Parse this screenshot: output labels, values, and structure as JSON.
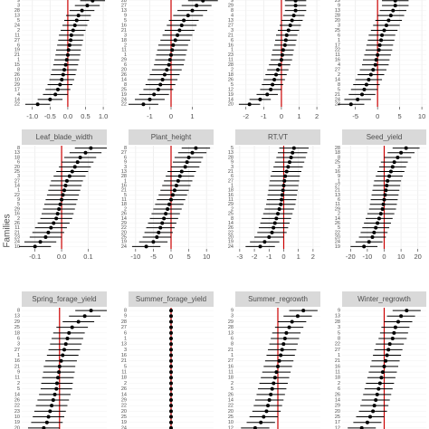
{
  "y_label": "Families",
  "chart_data": [
    {
      "type": "forest",
      "color": "#000000",
      "ref_color": "#cc0000",
      "reference_line": 0,
      "xlim": [
        -1.3,
        1.1
      ],
      "xticks": [
        {
          "value": -1,
          "label": "-1.0"
        },
        -0.5,
        {
          "value": 0,
          "label": "0.0"
        },
        0.5,
        {
          "value": 1,
          "label": "1.0"
        }
      ],
      "categories": [
        "9",
        "3",
        "28",
        "13",
        "5",
        "24",
        "2",
        "11",
        "27",
        "6",
        "19",
        "21",
        "1",
        "15",
        "8",
        "26",
        "10",
        "29",
        "17",
        "4",
        "14",
        "22"
      ],
      "values": [
        0.7,
        0.55,
        0.4,
        0.3,
        0.25,
        0.2,
        0.15,
        0.1,
        0.08,
        0.05,
        0.02,
        0,
        -0.03,
        -0.06,
        -0.1,
        -0.13,
        -0.17,
        -0.22,
        -0.28,
        -0.35,
        -0.5,
        -0.85
      ],
      "errors": [
        0.35,
        0.35,
        0.35,
        0.35,
        0.35,
        0.35,
        0.35,
        0.35,
        0.35,
        0.35,
        0.35,
        0.35,
        0.35,
        0.35,
        0.35,
        0.35,
        0.35,
        0.35,
        0.35,
        0.35,
        0.35,
        0.35
      ]
    },
    {
      "type": "forest",
      "color": "#000000",
      "ref_color": "#cc0000",
      "reference_line": 0,
      "xlim": [
        -2,
        2
      ],
      "xticks": [
        -1,
        0,
        1
      ],
      "categories": [
        "28",
        "27",
        "13",
        "9",
        "5",
        "16",
        "21",
        "3",
        "18",
        "2",
        "11",
        "1",
        "29",
        "6",
        "20",
        "26",
        "14",
        "8",
        "25",
        "19",
        "24",
        "22"
      ],
      "values": [
        1.5,
        1.2,
        1.0,
        0.8,
        0.6,
        0.5,
        0.4,
        0.3,
        0.2,
        0.1,
        0.05,
        0,
        -0.05,
        -0.1,
        -0.2,
        -0.3,
        -0.4,
        -0.5,
        -0.6,
        -0.8,
        -1.0,
        -1.3
      ],
      "errors": [
        0.7,
        0.7,
        0.7,
        0.7,
        0.7,
        0.7,
        0.7,
        0.7,
        0.7,
        0.7,
        0.7,
        0.7,
        0.7,
        0.7,
        0.7,
        0.7,
        0.7,
        0.7,
        0.7,
        0.7,
        0.7,
        0.7
      ]
    },
    {
      "type": "forest",
      "color": "#000000",
      "ref_color": "#cc0000",
      "reference_line": 0,
      "xlim": [
        -2.6,
        2.2
      ],
      "xticks": [
        -2,
        -1,
        0,
        1,
        2
      ],
      "categories": [
        "9",
        "29",
        "8",
        "4",
        "13",
        "27",
        "3",
        "21",
        "6",
        "16",
        "1",
        "23",
        "11",
        "28",
        "2",
        "18",
        "26",
        "5",
        "12",
        "19",
        "14",
        "20"
      ],
      "values": [
        0.8,
        0.8,
        0.8,
        0.7,
        0.6,
        0.5,
        0.4,
        0.3,
        0.25,
        0.2,
        0.1,
        0.05,
        0,
        -0.1,
        -0.2,
        -0.3,
        -0.4,
        -0.5,
        -0.6,
        -0.8,
        -1.2,
        -1.8
      ],
      "errors": [
        0.6,
        0.6,
        0.6,
        0.6,
        0.6,
        0.6,
        0.6,
        0.6,
        0.6,
        0.6,
        0.6,
        0.6,
        0.6,
        0.6,
        0.6,
        0.6,
        0.6,
        0.6,
        0.6,
        0.6,
        0.6,
        0.6
      ]
    },
    {
      "type": "forest",
      "color": "#000000",
      "ref_color": "#cc0000",
      "reference_line": 0,
      "xlim": [
        -8,
        11
      ],
      "xticks": [
        -5,
        0,
        5,
        10
      ],
      "categories": [
        "29",
        "9",
        "13",
        "28",
        "20",
        "3",
        "25",
        "6",
        "1",
        "17",
        "22",
        "11",
        "16",
        "4",
        "27",
        "2",
        "14",
        "8",
        "5",
        "21",
        "24",
        "23"
      ],
      "values": [
        4,
        4,
        3.5,
        3,
        2.5,
        2,
        1.5,
        1,
        0.8,
        0.5,
        0.3,
        0,
        -0.3,
        -0.5,
        -1,
        -1.5,
        -2,
        -2.5,
        -3,
        -3.5,
        -4.5,
        -6
      ],
      "errors": [
        3,
        3,
        3,
        3,
        3,
        3,
        3,
        3,
        3,
        3,
        3,
        3,
        3,
        3,
        3,
        3,
        3,
        3,
        3,
        3,
        3,
        3
      ]
    },
    {
      "type": "forest",
      "title": "Leaf_blade_width",
      "color": "#000000",
      "ref_color": "#cc0000",
      "reference_line": 0,
      "xlim": [
        -0.15,
        0.17
      ],
      "xticks": [
        -0.1,
        {
          "value": 0,
          "label": "0.0"
        },
        0.1
      ],
      "categories": [
        "8",
        "13",
        "18",
        "6",
        "20",
        "25",
        "3",
        "27",
        "14",
        "1",
        "22",
        "9",
        "5",
        "29",
        "16",
        "2",
        "26",
        "11",
        "21",
        "23",
        "24",
        "10"
      ],
      "values": [
        0.11,
        0.09,
        0.07,
        0.06,
        0.05,
        0.04,
        0.03,
        0.02,
        0.015,
        0.01,
        0.005,
        0,
        -0.005,
        -0.01,
        -0.015,
        -0.02,
        -0.03,
        -0.04,
        -0.05,
        -0.06,
        -0.08,
        -0.1
      ],
      "errors": [
        0.06,
        0.06,
        0.06,
        0.06,
        0.06,
        0.06,
        0.06,
        0.06,
        0.06,
        0.06,
        0.06,
        0.06,
        0.06,
        0.06,
        0.06,
        0.06,
        0.06,
        0.06,
        0.06,
        0.06,
        0.06,
        0.06
      ]
    },
    {
      "type": "forest",
      "title": "Plant_height",
      "color": "#000000",
      "ref_color": "#cc0000",
      "reference_line": 0,
      "xlim": [
        -12,
        12
      ],
      "xticks": [
        -10,
        -5,
        0,
        5,
        10
      ],
      "categories": [
        "8",
        "27",
        "6",
        "9",
        "3",
        "13",
        "28",
        "1",
        "16",
        "21",
        "5",
        "11",
        "18",
        "2",
        "26",
        "14",
        "29",
        "22",
        "20",
        "25",
        "19",
        "24"
      ],
      "values": [
        7,
        6,
        5,
        4.5,
        4,
        3,
        2.5,
        2,
        1.5,
        1,
        0.5,
        0,
        -0.5,
        -1,
        -1.5,
        -2,
        -2.5,
        -3,
        -3.5,
        -4,
        -5,
        -7
      ],
      "errors": [
        4,
        4,
        4,
        4,
        4,
        4,
        4,
        4,
        4,
        4,
        4,
        4,
        4,
        4,
        4,
        4,
        4,
        4,
        4,
        4,
        4,
        4
      ]
    },
    {
      "type": "forest",
      "title": "RT.VT",
      "color": "#000000",
      "ref_color": "#cc0000",
      "reference_line": 0,
      "xlim": [
        -3.3,
        2.5
      ],
      "xticks": [
        -3,
        -2,
        -1,
        0,
        1,
        2
      ],
      "categories": [
        "5",
        "13",
        "28",
        "9",
        "3",
        "21",
        "6",
        "27",
        "1",
        "18",
        "16",
        "11",
        "29",
        "2",
        "25",
        "8",
        "14",
        "26",
        "22",
        "20",
        "19",
        "24"
      ],
      "values": [
        0.7,
        0.6,
        0.5,
        0.4,
        0.3,
        0.2,
        0.1,
        0.05,
        0,
        -0.05,
        -0.1,
        -0.15,
        -0.2,
        -0.3,
        -0.4,
        -0.5,
        -0.6,
        -0.7,
        -0.8,
        -1,
        -1.3,
        -1.6
      ],
      "errors": [
        1,
        1,
        1,
        1,
        1,
        1,
        1,
        1,
        1,
        1,
        1,
        1,
        1,
        1,
        1,
        1,
        1,
        1,
        1,
        1,
        1,
        1
      ]
    },
    {
      "type": "forest",
      "title": "Seed_yield",
      "color": "#000000",
      "ref_color": "#cc0000",
      "reference_line": 0,
      "xlim": [
        -25,
        25
      ],
      "xticks": [
        -20,
        -10,
        0,
        10,
        20
      ],
      "categories": [
        "28",
        "18",
        "8",
        "25",
        "3",
        "16",
        "9",
        "1",
        "27",
        "21",
        "13",
        "6",
        "11",
        "29",
        "2",
        "14",
        "26",
        "5",
        "22",
        "20",
        "24",
        "19"
      ],
      "values": [
        13,
        10,
        8,
        6,
        5,
        4,
        3,
        2,
        1.5,
        1,
        0.5,
        0,
        -0.5,
        -1,
        -2,
        -3,
        -4,
        -5,
        -6,
        -7,
        -9,
        -12
      ],
      "errors": [
        8,
        8,
        8,
        8,
        8,
        8,
        8,
        8,
        8,
        8,
        8,
        8,
        8,
        8,
        8,
        8,
        8,
        8,
        8,
        8,
        8,
        8
      ]
    },
    {
      "type": "forest",
      "title": "Spring_forage_yield",
      "color": "#000000",
      "ref_color": "#cc0000",
      "reference_line": 0,
      "xlim": [
        -1.2,
        1.5
      ],
      "categories": [
        "8",
        "13",
        "29",
        "25",
        "18",
        "6",
        "3",
        "27",
        "1",
        "16",
        "21",
        "9",
        "11",
        "2",
        "5",
        "14",
        "26",
        "22",
        "23",
        "10",
        "19",
        "20"
      ],
      "values": [
        1.0,
        0.8,
        0.6,
        0.4,
        0.3,
        0.25,
        0.2,
        0.15,
        0.1,
        0.05,
        0,
        -0.02,
        -0.05,
        -0.08,
        -0.1,
        -0.15,
        -0.2,
        -0.25,
        -0.3,
        -0.35,
        -0.4,
        -0.5
      ],
      "errors": [
        0.5,
        0.5,
        0.5,
        0.5,
        0.5,
        0.5,
        0.5,
        0.5,
        0.5,
        0.5,
        0.5,
        0.5,
        0.5,
        0.5,
        0.5,
        0.5,
        0.5,
        0.5,
        0.5,
        0.5,
        0.5,
        0.5
      ]
    },
    {
      "type": "forest",
      "title": "Summer_forage_yield",
      "color": "#000000",
      "ref_color": "#cc0000",
      "reference_line": 0,
      "xlim": [
        -1,
        1
      ],
      "categories": [
        "8",
        "9",
        "28",
        "27",
        "6",
        "1",
        "13",
        "3",
        "16",
        "21",
        "5",
        "11",
        "18",
        "2",
        "26",
        "14",
        "29",
        "22",
        "20",
        "25",
        "19",
        "24"
      ],
      "values": [
        0,
        0,
        0,
        0,
        0,
        0,
        0,
        0,
        0,
        0,
        0,
        0,
        0,
        0,
        0,
        0,
        0,
        0,
        0,
        0,
        0,
        0
      ],
      "errors": [
        0,
        0,
        0,
        0,
        0,
        0,
        0,
        0,
        0,
        0,
        0,
        0,
        0,
        0,
        0,
        0,
        0,
        0,
        0,
        0,
        0,
        0
      ]
    },
    {
      "type": "forest",
      "title": "Summer_regrowth",
      "color": "#000000",
      "ref_color": "#cc0000",
      "reference_line": 0,
      "xlim": [
        -1.5,
        1.5
      ],
      "categories": [
        "9",
        "3",
        "29",
        "28",
        "13",
        "6",
        "8",
        "21",
        "1",
        "27",
        "16",
        "11",
        "18",
        "2",
        "5",
        "26",
        "14",
        "22",
        "20",
        "25",
        "10",
        "12"
      ],
      "values": [
        0.9,
        0.7,
        0.5,
        0.4,
        0.3,
        0.25,
        0.2,
        0.15,
        0.1,
        0.05,
        0,
        -0.05,
        -0.1,
        -0.15,
        -0.2,
        -0.25,
        -0.3,
        -0.35,
        -0.4,
        -0.5,
        -0.6,
        -0.8
      ],
      "errors": [
        0.5,
        0.5,
        0.5,
        0.5,
        0.5,
        0.5,
        0.5,
        0.5,
        0.5,
        0.5,
        0.5,
        0.5,
        0.5,
        0.5,
        0.5,
        0.5,
        0.5,
        0.5,
        0.5,
        0.5,
        0.5,
        0.5
      ]
    },
    {
      "type": "forest",
      "title": "Winter_regrowth",
      "color": "#000000",
      "ref_color": "#cc0000",
      "reference_line": 0,
      "xlim": [
        -1.5,
        1.5
      ],
      "categories": [
        "9",
        "13",
        "28",
        "3",
        "5",
        "8",
        "22",
        "27",
        "1",
        "21",
        "16",
        "11",
        "18",
        "2",
        "6",
        "26",
        "14",
        "29",
        "20",
        "25",
        "17",
        "12"
      ],
      "values": [
        0.8,
        0.6,
        0.5,
        0.4,
        0.35,
        0.3,
        0.2,
        0.15,
        0.1,
        0.05,
        0,
        -0.05,
        -0.1,
        -0.15,
        -0.2,
        -0.25,
        -0.3,
        -0.35,
        -0.4,
        -0.5,
        -0.6,
        -0.8
      ],
      "errors": [
        0.5,
        0.5,
        0.5,
        0.5,
        0.5,
        0.5,
        0.5,
        0.5,
        0.5,
        0.5,
        0.5,
        0.5,
        0.5,
        0.5,
        0.5,
        0.5,
        0.5,
        0.5,
        0.5,
        0.5,
        0.5,
        0.5
      ]
    }
  ]
}
